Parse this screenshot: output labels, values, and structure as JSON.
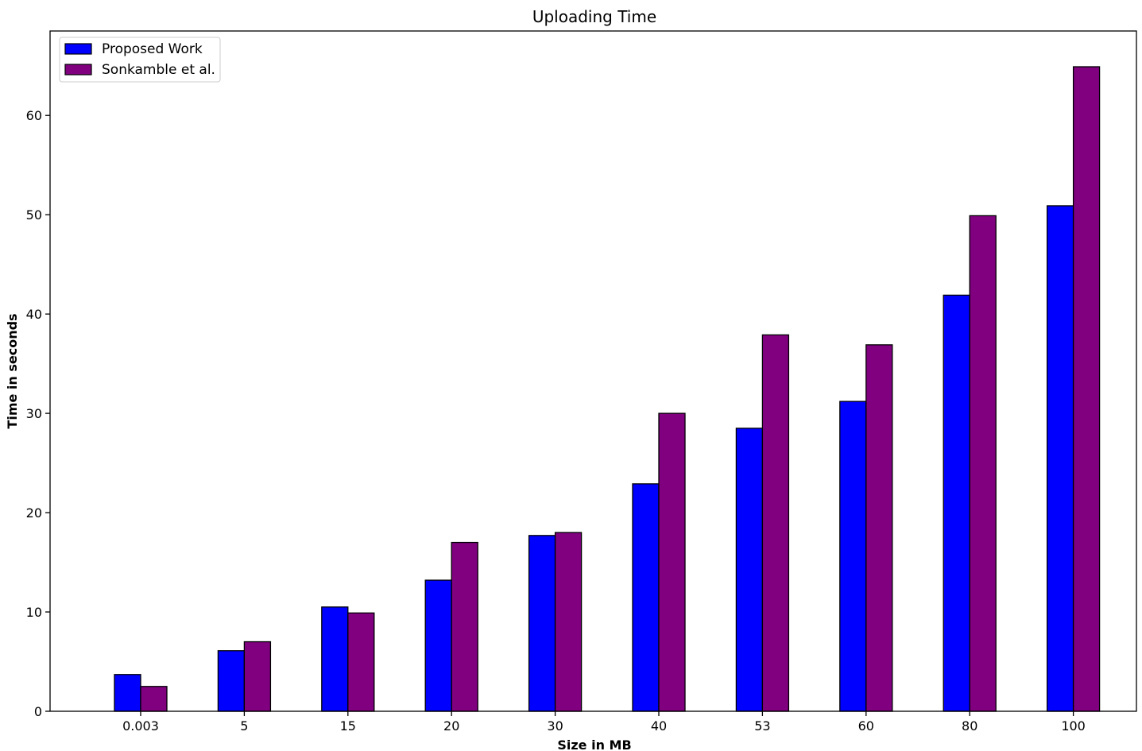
{
  "chart_data": {
    "type": "bar",
    "title": "Uploading Time",
    "xlabel": "Size in MB",
    "ylabel": "Time in seconds",
    "categories": [
      "0.003",
      "5",
      "15",
      "20",
      "30",
      "40",
      "53",
      "60",
      "80",
      "100"
    ],
    "series": [
      {
        "name": "Proposed Work",
        "color": "#0000ff",
        "values": [
          3.7,
          6.1,
          10.5,
          13.2,
          17.7,
          22.9,
          28.5,
          31.2,
          41.9,
          50.9
        ]
      },
      {
        "name": "Sonkamble et al.",
        "color": "#800080",
        "values": [
          2.5,
          7.0,
          9.9,
          17.0,
          18.0,
          30.0,
          37.9,
          36.9,
          49.9,
          64.9
        ]
      }
    ],
    "ylim": [
      0,
      68.5
    ],
    "yticks": [
      0,
      10,
      20,
      30,
      40,
      50,
      60
    ],
    "grid": false,
    "legend": "top-left"
  }
}
